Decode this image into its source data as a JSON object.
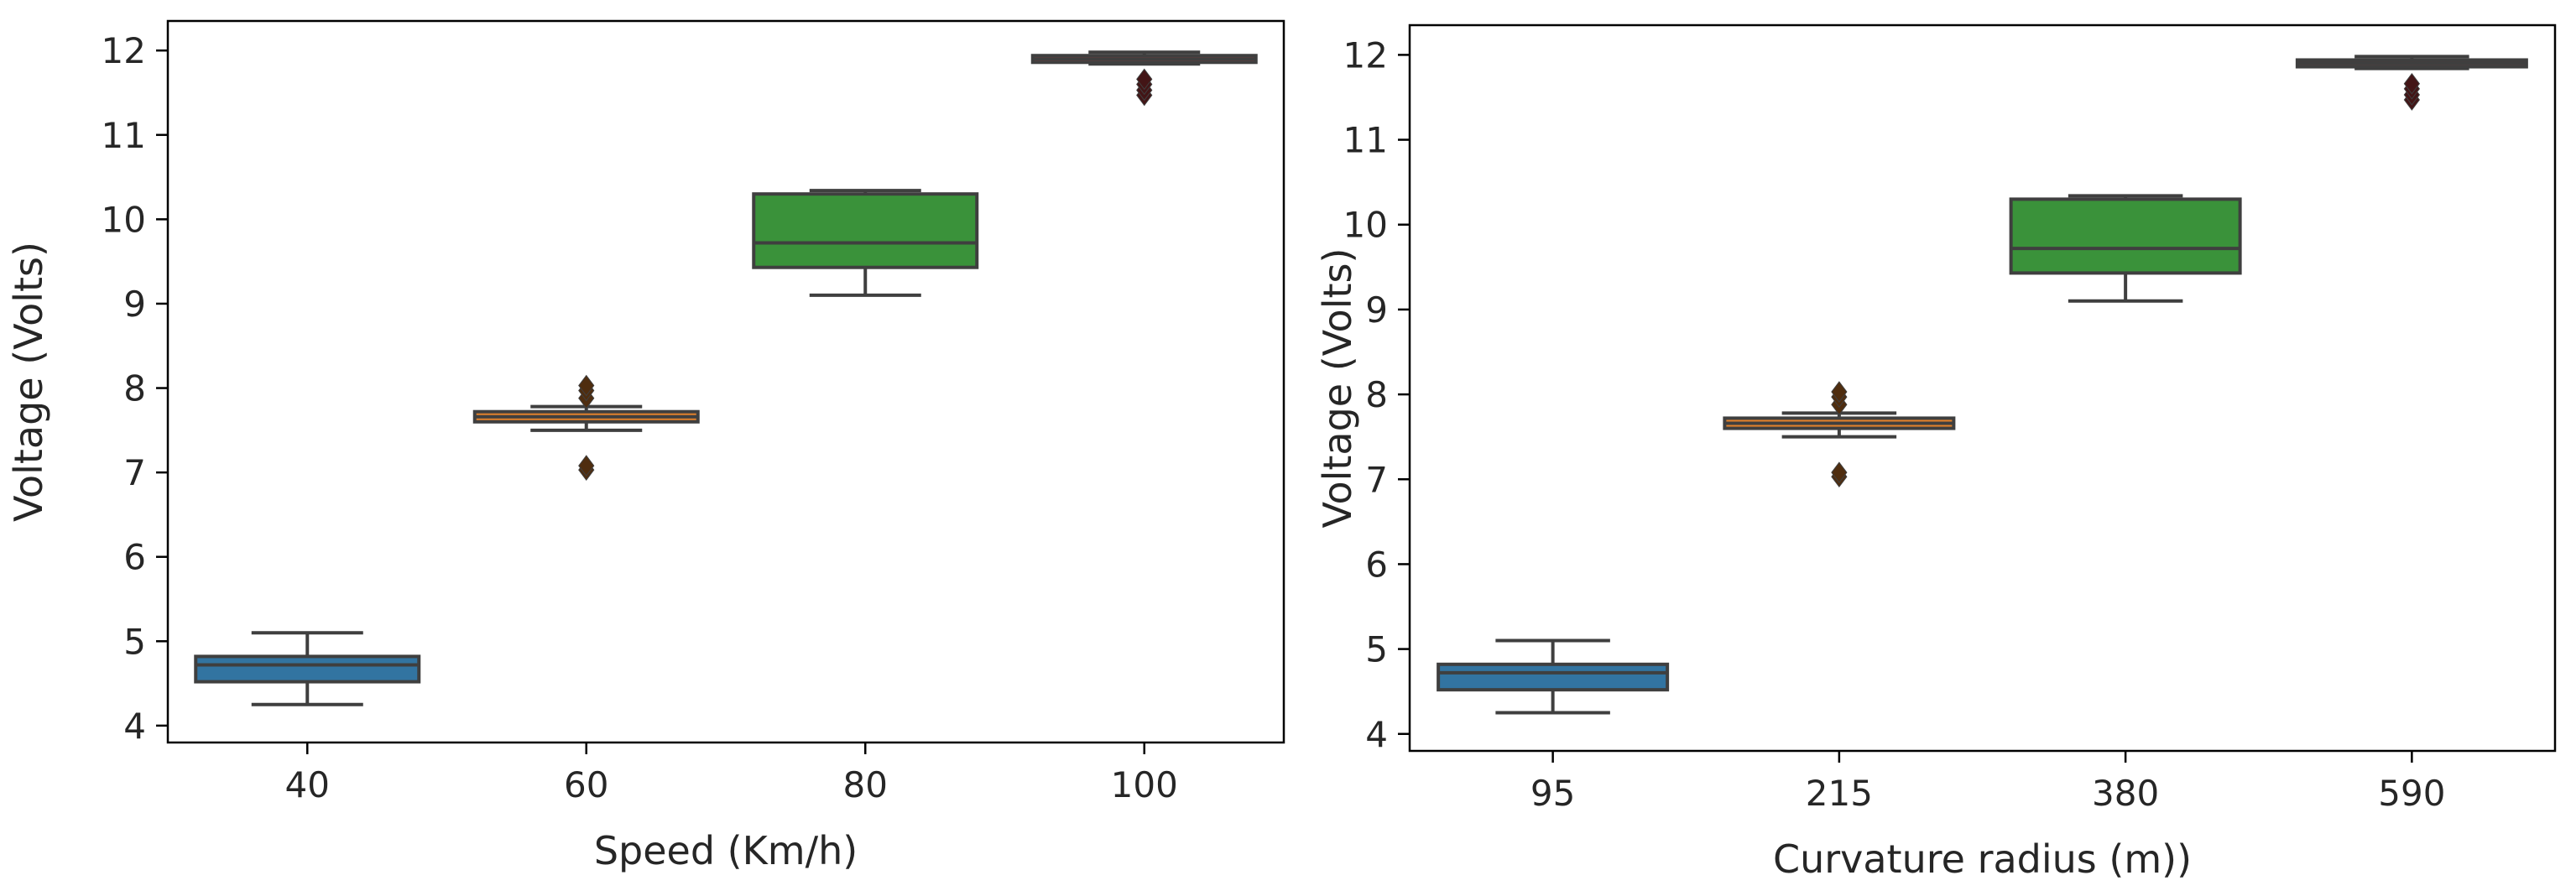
{
  "chart_data": [
    {
      "type": "box",
      "title": "",
      "xlabel": "Speed (Km/h)",
      "ylabel": "Voltage (Volts)",
      "categories": [
        "40",
        "60",
        "80",
        "100"
      ],
      "yticks": [
        "4",
        "5",
        "6",
        "7",
        "8",
        "9",
        "10",
        "11",
        "12"
      ],
      "ylim": [
        3.8,
        12.35
      ],
      "boxes": [
        {
          "category": "40",
          "color": "#3274a1",
          "whisker_low": 4.25,
          "q1": 4.52,
          "median": 4.72,
          "q3": 4.82,
          "whisker_high": 5.1,
          "outliers": []
        },
        {
          "category": "60",
          "color": "#e1812c",
          "whisker_low": 7.5,
          "q1": 7.6,
          "median": 7.66,
          "q3": 7.72,
          "whisker_high": 7.78,
          "outliers": [
            7.03,
            7.08,
            7.88,
            7.97,
            8.03
          ]
        },
        {
          "category": "80",
          "color": "#3a923a",
          "whisker_low": 9.1,
          "q1": 9.43,
          "median": 9.72,
          "q3": 10.3,
          "whisker_high": 10.34,
          "outliers": []
        },
        {
          "category": "100",
          "color": "#c03d3e",
          "whisker_low": 11.84,
          "q1": 11.86,
          "median": 11.9,
          "q3": 11.94,
          "whisker_high": 11.98,
          "outliers": [
            11.47,
            11.53,
            11.6,
            11.66
          ]
        }
      ]
    },
    {
      "type": "box",
      "title": "",
      "xlabel": "Curvature radius (m))",
      "ylabel": "Voltage (Volts)",
      "categories": [
        "95",
        "215",
        "380",
        "590"
      ],
      "yticks": [
        "4",
        "5",
        "6",
        "7",
        "8",
        "9",
        "10",
        "11",
        "12"
      ],
      "ylim": [
        3.8,
        12.35
      ],
      "boxes": [
        {
          "category": "95",
          "color": "#3274a1",
          "whisker_low": 4.25,
          "q1": 4.52,
          "median": 4.72,
          "q3": 4.82,
          "whisker_high": 5.1,
          "outliers": []
        },
        {
          "category": "215",
          "color": "#e1812c",
          "whisker_low": 7.5,
          "q1": 7.6,
          "median": 7.66,
          "q3": 7.72,
          "whisker_high": 7.78,
          "outliers": [
            7.03,
            7.08,
            7.88,
            7.97,
            8.03
          ]
        },
        {
          "category": "380",
          "color": "#3a923a",
          "whisker_low": 9.1,
          "q1": 9.43,
          "median": 9.72,
          "q3": 10.3,
          "whisker_high": 10.34,
          "outliers": []
        },
        {
          "category": "590",
          "color": "#c03d3e",
          "whisker_low": 11.84,
          "q1": 11.86,
          "median": 11.9,
          "q3": 11.94,
          "whisker_high": 11.98,
          "outliers": [
            11.47,
            11.53,
            11.6,
            11.66
          ]
        }
      ]
    }
  ]
}
